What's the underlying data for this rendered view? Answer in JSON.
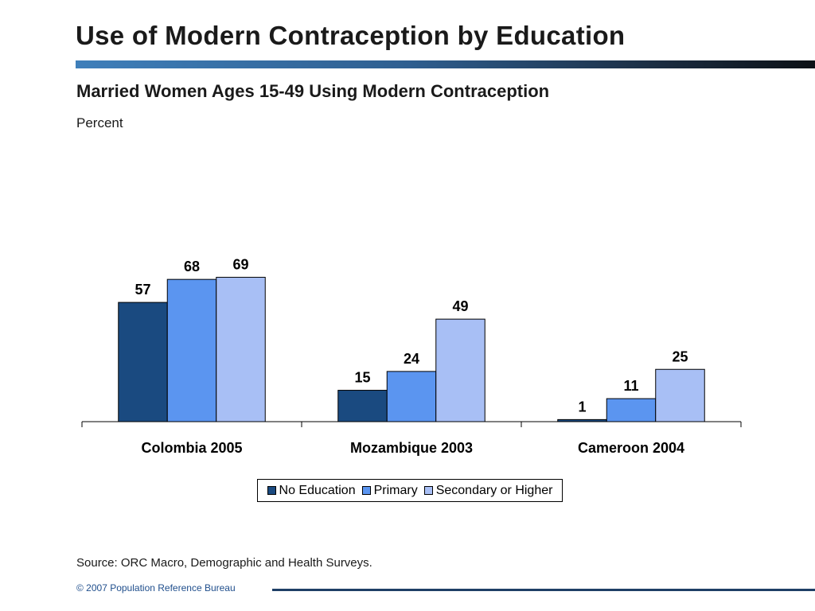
{
  "slide": {
    "title": "Use of Modern Contraception by Education",
    "source": "Source: ORC Macro, Demographic and Health Surveys.",
    "copyright": "© 2007 Population Reference Bureau"
  },
  "chart_data": {
    "type": "bar",
    "title": "Married Women Ages 15-49 Using Modern Contraception",
    "subtitle": "Percent",
    "xlabel": "",
    "ylabel": "",
    "categories": [
      "Colombia 2005",
      "Mozambique 2003",
      "Cameroon 2004"
    ],
    "series": [
      {
        "name": "No Education",
        "values": [
          57,
          15,
          1
        ],
        "color": "#1a4a80"
      },
      {
        "name": "Primary",
        "values": [
          68,
          24,
          11
        ],
        "color": "#5b95f0"
      },
      {
        "name": "Secondary or Higher",
        "values": [
          69,
          49,
          25
        ],
        "color": "#a8bff5"
      }
    ],
    "ylim": [
      0,
      100
    ],
    "data_labels": true,
    "grid": false,
    "legend_position": "bottom"
  }
}
